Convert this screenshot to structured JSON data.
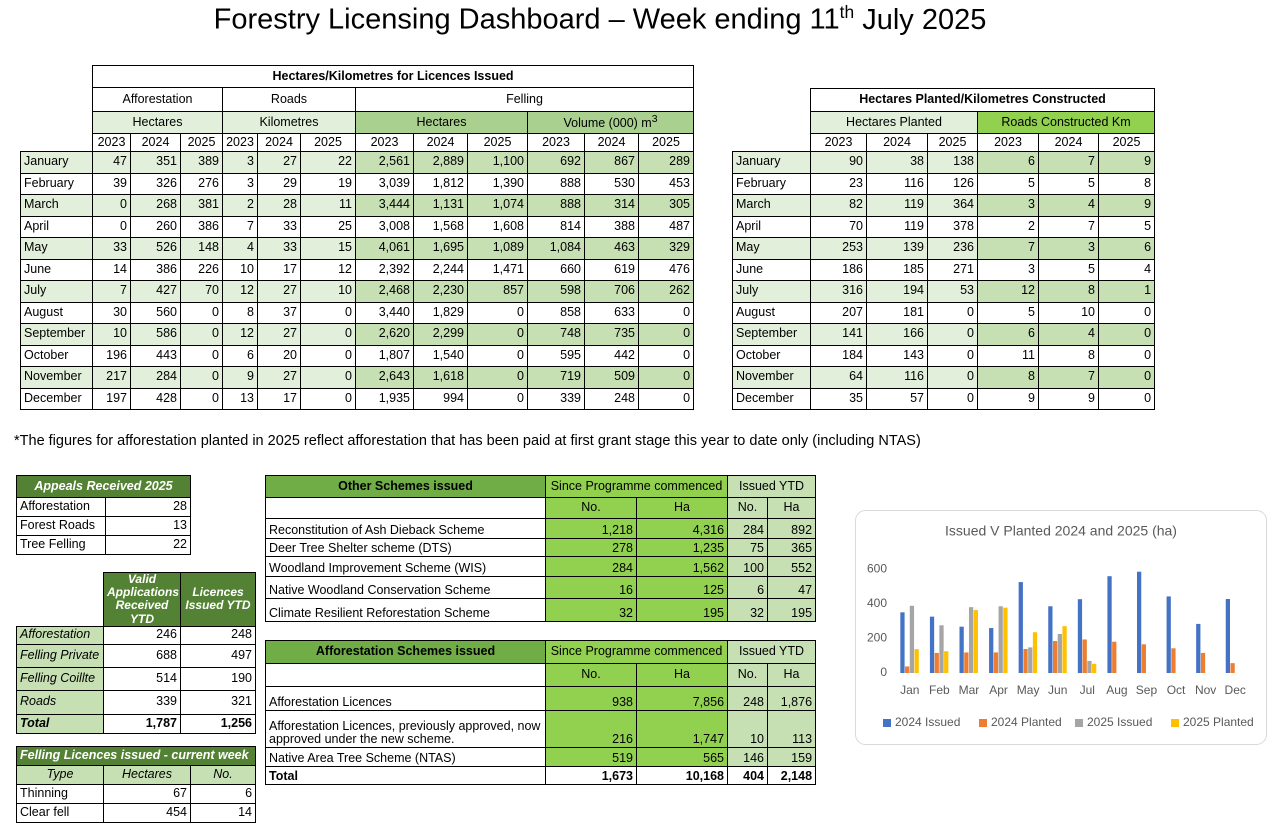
{
  "title": {
    "text": "Forestry Licensing Dashboard – Week ending 11",
    "sup": "th",
    "end": "July 2025"
  },
  "licences": {
    "title": "Hectares/Kilometres for Licences Issued",
    "groups": [
      "Afforestation",
      "Roads",
      "Felling"
    ],
    "subgroups": [
      "Hectares",
      "Kilometres",
      "Hectares",
      "Volume (000) m"
    ],
    "subgroup_sup": "3",
    "years": [
      "2023",
      "2024",
      "2025"
    ],
    "rows": [
      [
        "January",
        "47",
        "351",
        "389",
        "3",
        "27",
        "22",
        "2,561",
        "2,889",
        "1,100",
        "692",
        "867",
        "289"
      ],
      [
        "February",
        "39",
        "326",
        "276",
        "3",
        "29",
        "19",
        "3,039",
        "1,812",
        "1,390",
        "888",
        "530",
        "453"
      ],
      [
        "March",
        "0",
        "268",
        "381",
        "2",
        "28",
        "11",
        "3,444",
        "1,131",
        "1,074",
        "888",
        "314",
        "305"
      ],
      [
        "April",
        "0",
        "260",
        "386",
        "7",
        "33",
        "25",
        "3,008",
        "1,568",
        "1,608",
        "814",
        "388",
        "487"
      ],
      [
        "May",
        "33",
        "526",
        "148",
        "4",
        "33",
        "15",
        "4,061",
        "1,695",
        "1,089",
        "1,084",
        "463",
        "329"
      ],
      [
        "June",
        "14",
        "386",
        "226",
        "10",
        "17",
        "12",
        "2,392",
        "2,244",
        "1,471",
        "660",
        "619",
        "476"
      ],
      [
        "July",
        "7",
        "427",
        "70",
        "12",
        "27",
        "10",
        "2,468",
        "2,230",
        "857",
        "598",
        "706",
        "262"
      ],
      [
        "August",
        "30",
        "560",
        "0",
        "8",
        "37",
        "0",
        "3,440",
        "1,829",
        "0",
        "858",
        "633",
        "0"
      ],
      [
        "September",
        "10",
        "586",
        "0",
        "12",
        "27",
        "0",
        "2,620",
        "2,299",
        "0",
        "748",
        "735",
        "0"
      ],
      [
        "October",
        "196",
        "443",
        "0",
        "6",
        "20",
        "0",
        "1,807",
        "1,540",
        "0",
        "595",
        "442",
        "0"
      ],
      [
        "November",
        "217",
        "284",
        "0",
        "9",
        "27",
        "0",
        "2,643",
        "1,618",
        "0",
        "719",
        "509",
        "0"
      ],
      [
        "December",
        "197",
        "428",
        "0",
        "13",
        "17",
        "0",
        "1,935",
        "994",
        "0",
        "339",
        "248",
        "0"
      ]
    ]
  },
  "planted": {
    "title": "Hectares Planted/Kilometres Constructed",
    "groups": [
      "Hectares Planted",
      "Roads Constructed Km"
    ],
    "years": [
      "2023",
      "2024",
      "2025"
    ],
    "rows": [
      [
        "January",
        "90",
        "38",
        "138",
        "6",
        "7",
        "9"
      ],
      [
        "February",
        "23",
        "116",
        "126",
        "5",
        "5",
        "8"
      ],
      [
        "March",
        "82",
        "119",
        "364",
        "3",
        "4",
        "9"
      ],
      [
        "April",
        "70",
        "119",
        "378",
        "2",
        "7",
        "5"
      ],
      [
        "May",
        "253",
        "139",
        "236",
        "7",
        "3",
        "6"
      ],
      [
        "June",
        "186",
        "185",
        "271",
        "3",
        "5",
        "4"
      ],
      [
        "July",
        "316",
        "194",
        "53",
        "12",
        "8",
        "1"
      ],
      [
        "August",
        "207",
        "181",
        "0",
        "5",
        "10",
        "0"
      ],
      [
        "September",
        "141",
        "166",
        "0",
        "6",
        "4",
        "0"
      ],
      [
        "October",
        "184",
        "143",
        "0",
        "11",
        "8",
        "0"
      ],
      [
        "November",
        "64",
        "116",
        "0",
        "8",
        "7",
        "0"
      ],
      [
        "December",
        "35",
        "57",
        "0",
        "9",
        "9",
        "0"
      ]
    ]
  },
  "footnote": "*The figures for afforestation planted in 2025 reflect afforestation that has been paid at first grant stage this year to date only (including NTAS)",
  "appeals": {
    "title": "Appeals Received 2025",
    "rows": [
      [
        "Afforestation",
        "28"
      ],
      [
        "Forest Roads",
        "13"
      ],
      [
        "Tree Felling",
        "22"
      ]
    ]
  },
  "applications": {
    "headers": [
      "Valid Applications Received YTD",
      "Licences Issued YTD"
    ],
    "rows": [
      [
        "Afforestation",
        "246",
        "248"
      ],
      [
        "Felling Private",
        "688",
        "497"
      ],
      [
        "Felling Coillte",
        "514",
        "190"
      ],
      [
        "Roads",
        "339",
        "321"
      ],
      [
        "Total",
        "1,787",
        "1,256"
      ]
    ]
  },
  "felling_week": {
    "title": "Felling Licences issued - current week",
    "headers": [
      "Type",
      "Hectares",
      "No."
    ],
    "rows": [
      [
        "Thinning",
        "67",
        "6"
      ],
      [
        "Clear fell",
        "454",
        "14"
      ]
    ]
  },
  "other_schemes": {
    "title": "Other Schemes issued",
    "groups": [
      "Since Programme commenced",
      "Issued YTD"
    ],
    "subheaders": [
      "No.",
      "Ha",
      "No.",
      "Ha"
    ],
    "rows": [
      [
        "Reconstitution of Ash Dieback Scheme",
        "1,218",
        "4,316",
        "284",
        "892"
      ],
      [
        "Deer Tree Shelter scheme (DTS)",
        "278",
        "1,235",
        "75",
        "365"
      ],
      [
        "Woodland Improvement Scheme (WIS)",
        "284",
        "1,562",
        "100",
        "552"
      ],
      [
        "Native Woodland Conservation Scheme",
        "16",
        "125",
        "6",
        "47"
      ],
      [
        "Climate Resilient Reforestation Scheme",
        "32",
        "195",
        "32",
        "195"
      ]
    ]
  },
  "afforestation_schemes": {
    "title": "Afforestation Schemes issued",
    "groups": [
      "Since Programme commenced",
      "Issued YTD"
    ],
    "subheaders": [
      "No.",
      "Ha",
      "No.",
      "Ha"
    ],
    "rows": [
      [
        "Afforestation Licences",
        "938",
        "7,856",
        "248",
        "1,876"
      ],
      [
        "Afforestation Licences, previously approved, now approved under the new scheme.",
        "216",
        "1,747",
        "10",
        "113"
      ],
      [
        "Native Area Tree Scheme (NTAS)",
        "519",
        "565",
        "146",
        "159"
      ],
      [
        "Total",
        "1,673",
        "10,168",
        "404",
        "2,148"
      ]
    ]
  },
  "chart_data": {
    "type": "bar",
    "title": "Issued V Planted 2024 and 2025 (ha)",
    "categories": [
      "Jan",
      "Feb",
      "Mar",
      "Apr",
      "May",
      "Jun",
      "Jul",
      "Aug",
      "Sep",
      "Oct",
      "Nov",
      "Dec"
    ],
    "series": [
      {
        "name": "2024 Issued",
        "color": "#4472c4",
        "values": [
          351,
          326,
          268,
          260,
          526,
          386,
          427,
          560,
          586,
          443,
          284,
          428
        ]
      },
      {
        "name": "2024 Planted",
        "color": "#ed7d31",
        "values": [
          38,
          116,
          119,
          119,
          139,
          185,
          194,
          181,
          166,
          143,
          116,
          57
        ]
      },
      {
        "name": "2025 Issued",
        "color": "#a5a5a5",
        "values": [
          389,
          276,
          381,
          386,
          148,
          226,
          70,
          0,
          0,
          0,
          0,
          0
        ]
      },
      {
        "name": "2025 Planted",
        "color": "#ffc000",
        "values": [
          138,
          126,
          364,
          378,
          236,
          271,
          53,
          0,
          0,
          0,
          0,
          0
        ]
      }
    ],
    "ylim": [
      0,
      700
    ],
    "yticks": [
      0,
      200,
      400,
      600
    ],
    "grid": false,
    "legend": "bottom"
  }
}
